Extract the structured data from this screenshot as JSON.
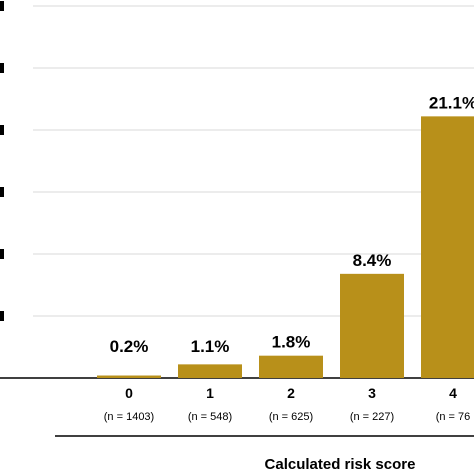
{
  "chart_data": {
    "type": "bar",
    "categories": [
      "0",
      "1",
      "2",
      "3",
      "4"
    ],
    "sample_sizes": [
      "(n = 1403)",
      "(n = 548)",
      "(n = 625)",
      "(n = 227)",
      "(n = 76"
    ],
    "values": [
      0.2,
      1.1,
      1.8,
      8.4,
      21.1
    ],
    "data_labels": [
      "0.2%",
      "1.1%",
      "1.8%",
      "8.4%",
      "21.1%"
    ],
    "xlabel": "Calculated risk score",
    "ylabel": "",
    "ylim": [
      0,
      50
    ],
    "ytick_step": 5,
    "grid": true,
    "bar_color": "#b8901a"
  }
}
